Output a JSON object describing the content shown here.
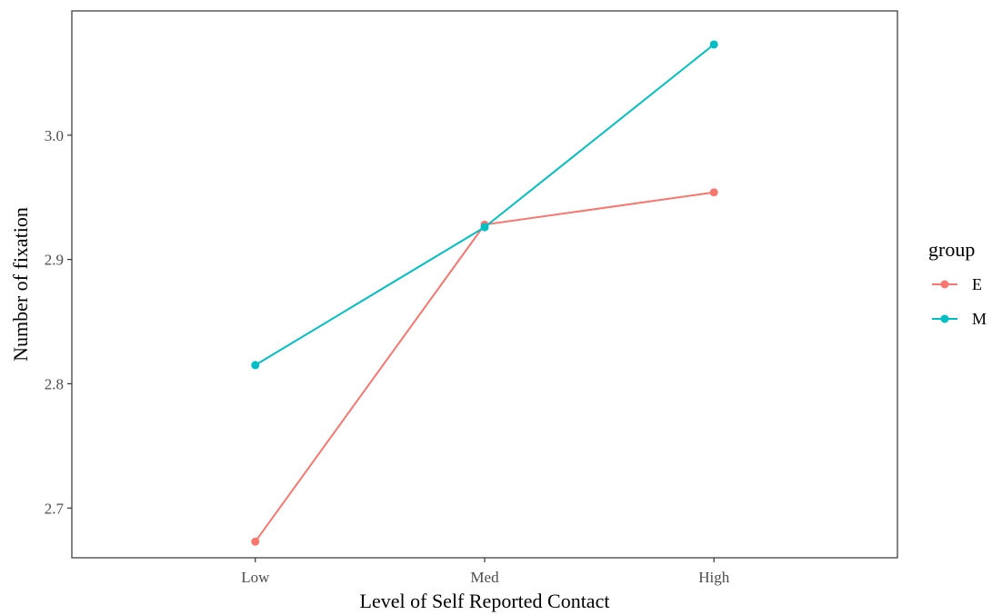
{
  "chart_data": {
    "type": "line",
    "title": "",
    "xlabel": "Level of Self Reported Contact",
    "ylabel": "Number of fixation",
    "categories": [
      "Low",
      "Med",
      "High"
    ],
    "ylim": [
      2.66,
      3.1
    ],
    "yticks": [
      2.7,
      2.8,
      2.9,
      3.0
    ],
    "ytick_labels": [
      "2.7",
      "2.8",
      "2.9",
      "3.0"
    ],
    "grid": false,
    "legend": {
      "title": "group",
      "placement": "right"
    },
    "series": [
      {
        "name": "E",
        "color": "#F8766D",
        "values": [
          2.673,
          2.928,
          2.954
        ]
      },
      {
        "name": "M",
        "color": "#00BFC4",
        "values": [
          2.815,
          2.926,
          3.073
        ]
      }
    ]
  }
}
